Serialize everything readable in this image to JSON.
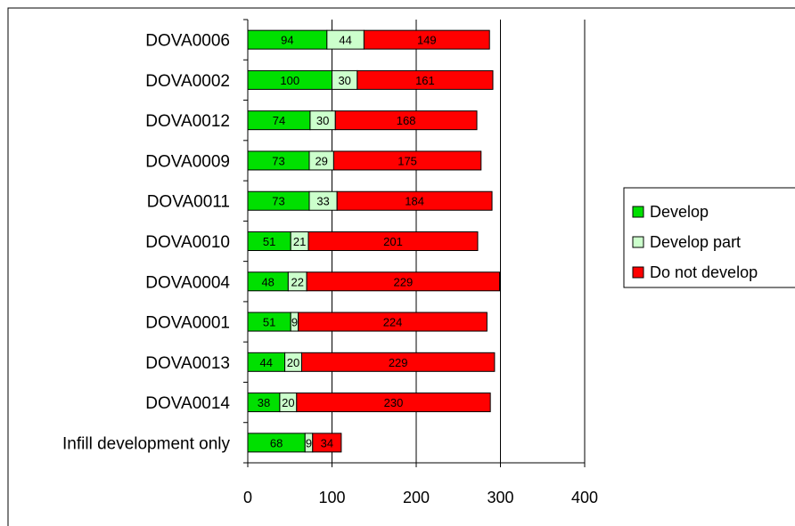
{
  "chart_data": {
    "type": "bar",
    "orientation": "horizontal",
    "stacked": true,
    "categories": [
      "DOVA0006",
      "DOVA0002",
      "DOVA0012",
      "DOVA0009",
      "DOVA0011",
      "DOVA0010",
      "DOVA0004",
      "DOVA0001",
      "DOVA0013",
      "DOVA0014",
      "Infill development only"
    ],
    "series": [
      {
        "name": "Develop",
        "color": "#00e000",
        "values": [
          94,
          100,
          74,
          73,
          73,
          51,
          48,
          51,
          44,
          38,
          68
        ]
      },
      {
        "name": "Develop part",
        "color": "#ccffcc",
        "values": [
          44,
          30,
          30,
          29,
          33,
          21,
          22,
          9,
          20,
          20,
          9
        ]
      },
      {
        "name": "Do not develop",
        "color": "#ff0000",
        "values": [
          149,
          161,
          168,
          175,
          184,
          201,
          229,
          224,
          229,
          230,
          34
        ]
      }
    ],
    "title": "",
    "xlabel": "",
    "ylabel": "",
    "xlim": [
      0,
      400
    ],
    "xticks": [
      0,
      100,
      200,
      300,
      400
    ],
    "grid": "vertical",
    "legend": "right",
    "data_labels": true
  }
}
